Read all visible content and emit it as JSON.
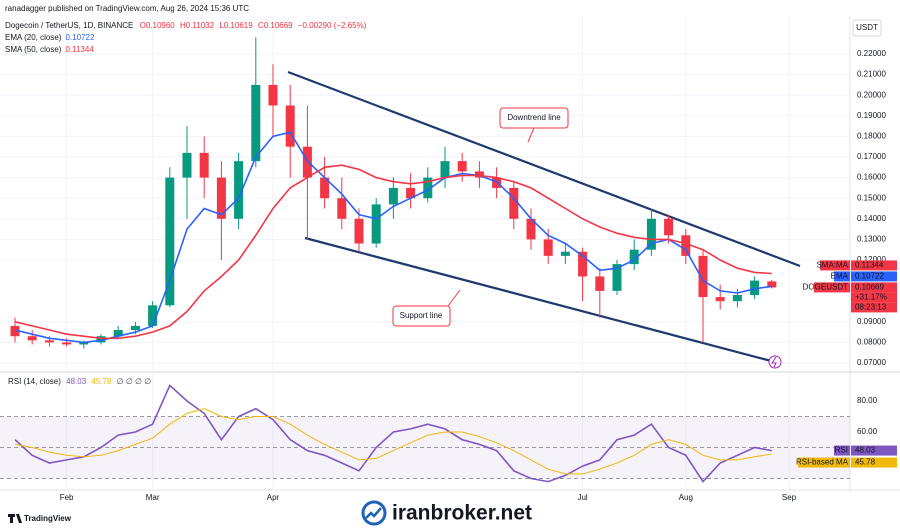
{
  "header": {
    "published": "ranadagger published on TradingView.com, Aug 26, 2024 15:36 UTC",
    "symbol": "Dogecoin / TetherUS, 1D, BINANCE",
    "ohlc": [
      "O0.10960",
      "H0.11032",
      "L0.10619",
      "C0.10669",
      "−0.00290 (−2.65%)"
    ]
  },
  "chart_data": [
    {
      "type": "candlestick",
      "unit": "USDT",
      "categories": [
        null,
        null,
        null,
        "Feb",
        null,
        null,
        null,
        null,
        "Mar",
        null,
        null,
        null,
        null,
        null,
        null,
        "Apr",
        null,
        null,
        null,
        null,
        null,
        null,
        null,
        null,
        null,
        null,
        null,
        null,
        null,
        null,
        null,
        null,
        null,
        "Jul",
        null,
        null,
        null,
        null,
        null,
        "Aug",
        null,
        null,
        null,
        null,
        null,
        "Sep"
      ],
      "open": [
        0.088,
        0.083,
        0.081,
        0.08,
        0.079,
        0.08,
        0.083,
        0.086,
        0.088,
        0.098,
        0.16,
        0.172,
        0.16,
        0.14,
        0.168,
        0.205,
        0.195,
        0.175,
        0.16,
        0.15,
        0.14,
        0.128,
        0.147,
        0.155,
        0.15,
        0.16,
        0.168,
        0.163,
        0.16,
        0.155,
        0.14,
        0.13,
        0.122,
        0.124,
        0.112,
        0.105,
        0.118,
        0.125,
        0.14,
        0.132,
        0.122,
        0.102,
        0.1,
        0.103,
        0.1096,
        null
      ],
      "high": [
        0.092,
        0.086,
        0.083,
        0.082,
        0.081,
        0.084,
        0.088,
        0.09,
        0.1,
        0.165,
        0.185,
        0.18,
        0.168,
        0.172,
        0.228,
        0.215,
        0.205,
        0.195,
        0.17,
        0.16,
        0.145,
        0.15,
        0.16,
        0.162,
        0.165,
        0.175,
        0.172,
        0.168,
        0.165,
        0.158,
        0.145,
        0.135,
        0.128,
        0.126,
        0.116,
        0.12,
        0.13,
        0.145,
        0.142,
        0.135,
        0.125,
        0.108,
        0.106,
        0.112,
        0.11032,
        null
      ],
      "low": [
        0.08,
        0.079,
        0.078,
        0.078,
        0.077,
        0.079,
        0.082,
        0.084,
        0.087,
        0.097,
        0.14,
        0.15,
        0.12,
        0.135,
        0.165,
        0.18,
        0.16,
        0.13,
        0.145,
        0.135,
        0.124,
        0.126,
        0.14,
        0.145,
        0.148,
        0.155,
        0.158,
        0.155,
        0.15,
        0.135,
        0.125,
        0.118,
        0.118,
        0.1,
        0.092,
        0.103,
        0.115,
        0.122,
        0.128,
        0.118,
        0.08,
        0.096,
        0.097,
        0.101,
        0.10619,
        null
      ],
      "close": [
        0.083,
        0.081,
        0.08,
        0.079,
        0.08,
        0.083,
        0.086,
        0.088,
        0.098,
        0.16,
        0.172,
        0.16,
        0.14,
        0.168,
        0.205,
        0.195,
        0.175,
        0.16,
        0.15,
        0.14,
        0.128,
        0.147,
        0.155,
        0.15,
        0.16,
        0.168,
        0.163,
        0.16,
        0.155,
        0.14,
        0.13,
        0.122,
        0.124,
        0.112,
        0.105,
        0.118,
        0.125,
        0.14,
        0.132,
        0.122,
        0.102,
        0.1,
        0.103,
        0.11,
        0.10669,
        null
      ],
      "up_color": "#089981",
      "down_color": "#f23645",
      "series": [
        {
          "name": "EMA (20, close)",
          "tag": "EMA",
          "color": "#2962ff",
          "values": [
            0.086,
            0.084,
            0.082,
            0.081,
            0.08,
            0.081,
            0.083,
            0.085,
            0.088,
            0.11,
            0.135,
            0.145,
            0.142,
            0.15,
            0.17,
            0.18,
            0.182,
            0.168,
            0.16,
            0.152,
            0.142,
            0.14,
            0.146,
            0.15,
            0.154,
            0.16,
            0.162,
            0.161,
            0.158,
            0.15,
            0.14,
            0.132,
            0.128,
            0.122,
            0.115,
            0.116,
            0.12,
            0.128,
            0.13,
            0.125,
            0.11,
            0.105,
            0.104,
            0.106,
            0.10722,
            null
          ]
        },
        {
          "name": "SMA (50, close)",
          "tag": "SMA:MA",
          "color": "#f23645",
          "values": [
            0.09,
            0.088,
            0.086,
            0.084,
            0.083,
            0.082,
            0.082,
            0.083,
            0.085,
            0.088,
            0.095,
            0.105,
            0.112,
            0.12,
            0.132,
            0.145,
            0.155,
            0.16,
            0.165,
            0.166,
            0.164,
            0.16,
            0.158,
            0.157,
            0.158,
            0.16,
            0.161,
            0.161,
            0.16,
            0.158,
            0.155,
            0.15,
            0.145,
            0.14,
            0.136,
            0.133,
            0.131,
            0.13,
            0.13,
            0.128,
            0.125,
            0.12,
            0.116,
            0.114,
            0.11344,
            null
          ]
        }
      ],
      "price_tag": "DOGEUSDT",
      "price_tag_extra": [
        "+31.17%",
        "08:23:13"
      ],
      "ylim": [
        0.0666,
        0.2365
      ],
      "yticks": [
        {
          "value": 0.07,
          "label": "0.07000"
        },
        {
          "value": 0.08,
          "label": "0.08000"
        },
        {
          "value": 0.09,
          "label": "0.09000"
        },
        {
          "value": 0.12,
          "label": "0.12000"
        },
        {
          "value": 0.13,
          "label": "0.13000"
        },
        {
          "value": 0.14,
          "label": "0.14000"
        },
        {
          "value": 0.15,
          "label": "0.15000"
        },
        {
          "value": 0.16,
          "label": "0.16000"
        },
        {
          "value": 0.17,
          "label": "0.17000"
        },
        {
          "value": 0.18,
          "label": "0.18000"
        },
        {
          "value": 0.19,
          "label": "0.19000"
        },
        {
          "value": 0.2,
          "label": "0.20000"
        },
        {
          "value": 0.21,
          "label": "0.21000"
        },
        {
          "value": 0.22,
          "label": "0.22000"
        }
      ],
      "grid": true,
      "annotations": [
        "Downtrend line",
        "Support line"
      ]
    },
    {
      "type": "line",
      "title": "RSI (14, close)",
      "title_extra": "∅ ∅ ∅ ∅",
      "series": [
        {
          "name": "RSI",
          "color": "#7e57c2",
          "values": [
            55,
            45,
            40,
            42,
            44,
            50,
            58,
            60,
            65,
            90,
            80,
            72,
            55,
            70,
            75,
            68,
            55,
            48,
            45,
            40,
            35,
            50,
            60,
            62,
            65,
            62,
            55,
            52,
            48,
            35,
            30,
            28,
            32,
            38,
            42,
            55,
            58,
            65,
            50,
            45,
            28,
            40,
            45,
            50,
            48.03
          ]
        },
        {
          "name": "RSI-based MA",
          "color": "#f0b90b",
          "values": [
            52,
            50,
            47,
            45,
            44,
            45,
            48,
            52,
            56,
            65,
            72,
            75,
            70,
            68,
            70,
            70,
            65,
            58,
            52,
            47,
            42,
            43,
            48,
            53,
            58,
            60,
            60,
            57,
            53,
            48,
            42,
            36,
            33,
            33,
            36,
            40,
            45,
            52,
            55,
            52,
            45,
            42,
            42,
            44,
            45.78
          ]
        }
      ],
      "bands": [
        70,
        50,
        30
      ],
      "ylim": [
        22.6,
        94.8
      ],
      "yticks": [
        {
          "value": 60,
          "label": "60.00"
        },
        {
          "value": 80,
          "label": "80.00"
        }
      ]
    }
  ],
  "footer": {
    "brand": "TradingView",
    "watermark": "iranbroker.net"
  }
}
